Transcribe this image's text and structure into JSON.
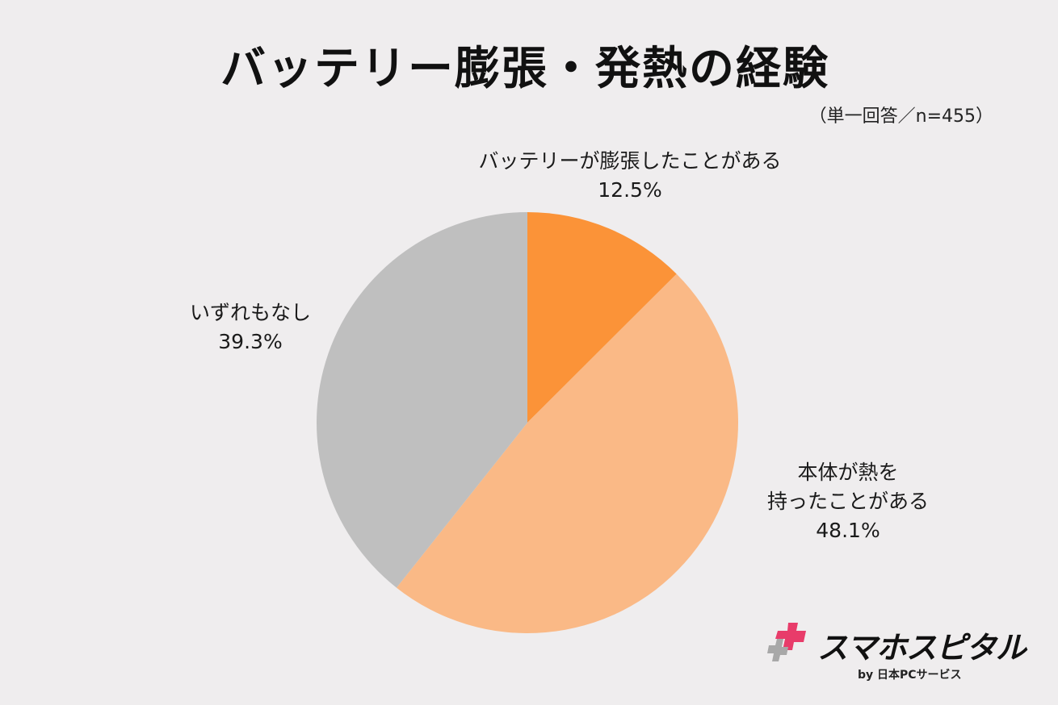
{
  "title": "バッテリー膨張・発熱の経験",
  "subtitle": "（単一回答／n=455）",
  "chart_data": {
    "type": "pie",
    "title": "バッテリー膨張・発熱の経験",
    "subtitle": "（単一回答／n=455）",
    "n": 455,
    "unit": "%",
    "start_angle": "12 o'clock",
    "direction": "clockwise",
    "slices": [
      {
        "label_lines": [
          "バッテリーが膨張したことがある"
        ],
        "value": 12.5,
        "value_label": "12.5%",
        "color": "#fb9338"
      },
      {
        "label_lines": [
          "本体が熱を",
          "持ったことがある"
        ],
        "value": 48.1,
        "value_label": "48.1%",
        "color": "#fab986"
      },
      {
        "label_lines": [
          "いずれもなし"
        ],
        "value": 39.3,
        "value_label": "39.3%",
        "color": "#bfbfbf"
      }
    ]
  },
  "logo": {
    "name": "スマホスピタル",
    "sub": "by  日本PCサービス",
    "colors": {
      "pink": "#e83c6a",
      "gray": "#a8a8a8"
    }
  }
}
